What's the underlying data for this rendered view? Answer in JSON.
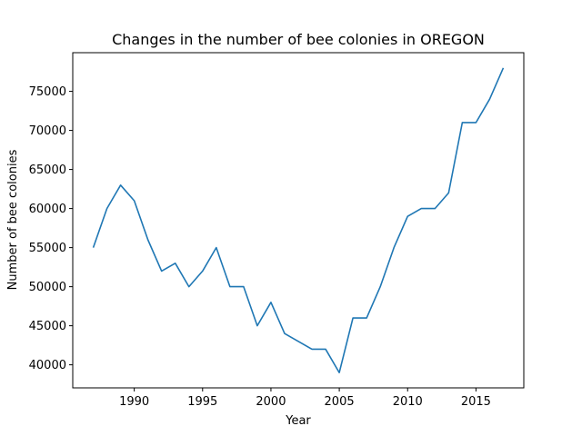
{
  "chart_data": {
    "type": "line",
    "title": "Changes in the number of bee colonies in OREGON",
    "xlabel": "Year",
    "ylabel": "Number of bee colonies",
    "xlim": [
      1985.5,
      2018.5
    ],
    "ylim": [
      37050,
      79950
    ],
    "xticks": [
      1990,
      1995,
      2000,
      2005,
      2010,
      2015
    ],
    "yticks": [
      40000,
      45000,
      50000,
      55000,
      60000,
      65000,
      70000,
      75000
    ],
    "grid": false,
    "line_color": "#1f77b4",
    "x": [
      1987,
      1988,
      1989,
      1990,
      1991,
      1992,
      1993,
      1994,
      1995,
      1996,
      1997,
      1998,
      1999,
      2000,
      2001,
      2002,
      2003,
      2004,
      2005,
      2006,
      2007,
      2008,
      2009,
      2010,
      2011,
      2012,
      2013,
      2014,
      2015,
      2016,
      2017
    ],
    "series": [
      {
        "values": [
          55000,
          60000,
          63000,
          61000,
          56000,
          52000,
          53000,
          50000,
          52000,
          55000,
          50000,
          50000,
          45000,
          48000,
          44000,
          43000,
          42000,
          42000,
          39000,
          46000,
          46000,
          50000,
          55000,
          59000,
          60000,
          60000,
          62000,
          71000,
          71000,
          74000,
          78000
        ]
      }
    ]
  }
}
